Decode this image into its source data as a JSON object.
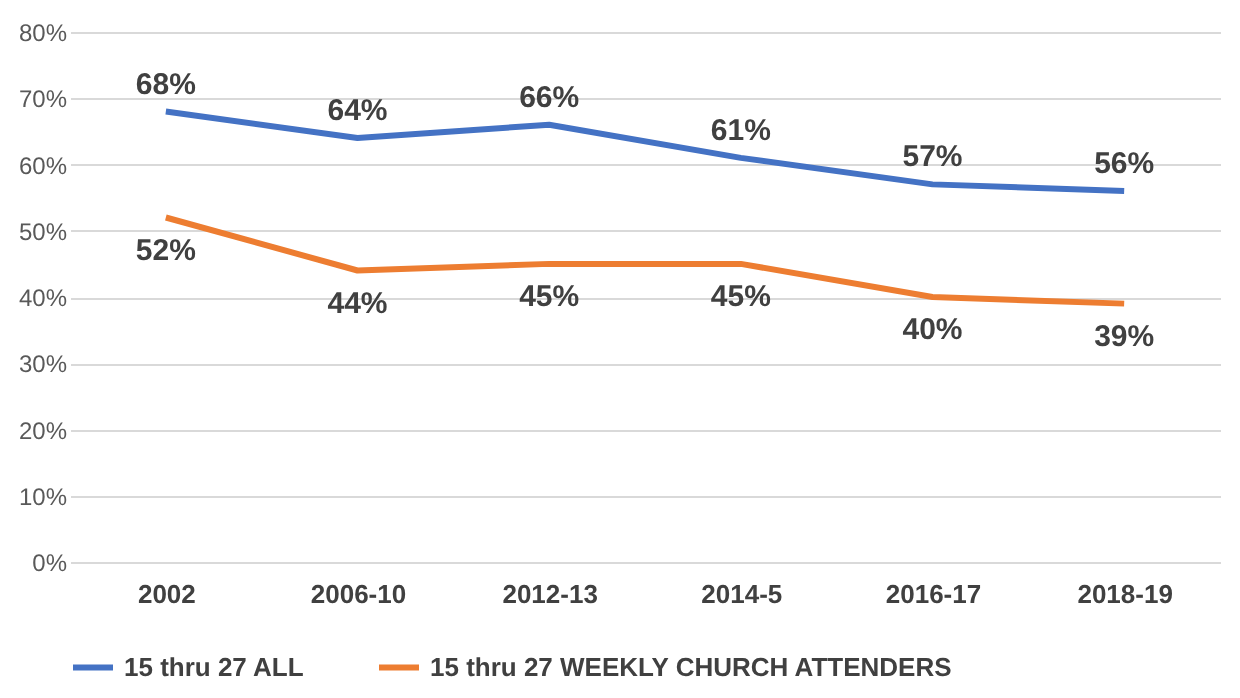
{
  "chart_data": {
    "type": "line",
    "categories": [
      "2002",
      "2006-10",
      "2012-13",
      "2014-5",
      "2016-17",
      "2018-19"
    ],
    "series": [
      {
        "name": "15 thru 27 ALL",
        "color": "#4472c4",
        "values": [
          68,
          64,
          66,
          61,
          57,
          56
        ],
        "value_labels": [
          "68%",
          "64%",
          "66%",
          "61%",
          "57%",
          "56%"
        ]
      },
      {
        "name": "15 thru 27 WEEKLY CHURCH ATTENDERS",
        "color": "#ed7d31",
        "values": [
          52,
          44,
          45,
          45,
          40,
          39
        ],
        "value_labels": [
          "52%",
          "44%",
          "45%",
          "45%",
          "40%",
          "39%"
        ]
      }
    ],
    "ylim": [
      0,
      80
    ],
    "yticks": [
      {
        "value": 0,
        "label": "0%"
      },
      {
        "value": 10,
        "label": "10%"
      },
      {
        "value": 20,
        "label": "20%"
      },
      {
        "value": 30,
        "label": "30%"
      },
      {
        "value": 40,
        "label": "40%"
      },
      {
        "value": 50,
        "label": "50%"
      },
      {
        "value": 60,
        "label": "60%"
      },
      {
        "value": 70,
        "label": "70%"
      },
      {
        "value": 80,
        "label": "80%"
      }
    ],
    "grid": "y",
    "legend": "bottom",
    "marker": "none",
    "line_style": "solid"
  }
}
